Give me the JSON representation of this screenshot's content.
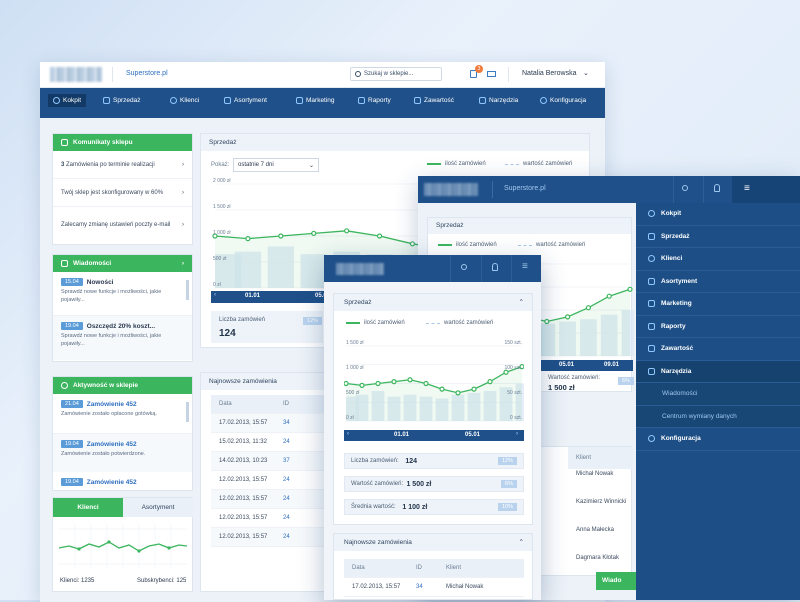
{
  "desktop": {
    "store_link": "Superstore.pl",
    "search_placeholder": "Szukaj w sklepie...",
    "cart_count": "3",
    "user_name": "Natalia Berowska",
    "nav": [
      "Kokpit",
      "Sprzedaż",
      "Klienci",
      "Asortyment",
      "Marketing",
      "Raporty",
      "Zawartość",
      "Narzędzia",
      "Konfiguracja"
    ],
    "komunikaty": {
      "title": "Komunikaty sklepu",
      "items": [
        {
          "num": "3",
          "text": "Zamówienia po terminie realizacji"
        },
        {
          "num": "",
          "text": "Twój sklep jest skonfigurowany w 60%"
        },
        {
          "num": "",
          "text": "Zalecamy zmianę ustawień poczty e-mail"
        }
      ]
    },
    "wiadomosci": {
      "title": "Wiadomości",
      "items": [
        {
          "date": "15.04",
          "title": "Nowości",
          "text": "Sprawdź nowe funkcje i możliwości, jakie pojawiły..."
        },
        {
          "date": "19.04",
          "title": "Oszczędź 20% koszt...",
          "text": "Sprawdź nowe funkcje i możliwości, jakie pojawiły..."
        }
      ]
    },
    "aktywnosc": {
      "title": "Aktywność w sklepie",
      "items": [
        {
          "date": "21.04",
          "title": "Zamówienie 452",
          "text": "Zamówienie zostało opłacone gotówką."
        },
        {
          "date": "19.04",
          "title": "Zamówienie 452",
          "text": "Zamówienie zostało potwierdzone."
        },
        {
          "date": "19.04",
          "title": "Zamówienie 452",
          "text": ""
        }
      ]
    },
    "tabs": {
      "klienci": "Klienci",
      "asortyment": "Asortyment",
      "klienci_count": "Klienci: 1235",
      "subskrybenci": "Subskrybenci: 125"
    },
    "sprzedaz": {
      "title": "Sprzedaż",
      "pokaz_label": "Pokaż:",
      "pokaz_value": "ostatnie 7 dni",
      "legend1": "ilość zamówień",
      "legend2": "wartość zamówień",
      "yticks": [
        "2 000 zł",
        "1 500 zł",
        "1 000 zł",
        "500 zł",
        "0 zł"
      ],
      "date1": "01.01",
      "date2": "05.01",
      "stat_label": "Liczba zamówień",
      "stat_value": "124",
      "stat_pct": "12%"
    },
    "najnowsze": {
      "title": "Najnowsze zamówienia",
      "headers": [
        "Data",
        "ID"
      ],
      "rows": [
        [
          "17.02.2013, 15:57",
          "34"
        ],
        [
          "15.02.2013, 11:32",
          "24"
        ],
        [
          "14.02.2013, 10:23",
          "37"
        ],
        [
          "12.02.2013, 15:57",
          "24"
        ],
        [
          "12.02.2013, 15:57",
          "24"
        ],
        [
          "12.02.2013, 15:57",
          "24"
        ],
        [
          "12.02.2013, 15:57",
          "24"
        ]
      ]
    }
  },
  "tablet": {
    "store_link": "Superstore.pl",
    "sprzedaz_title": "Sprzedaż",
    "legend1": "ilość zamówień",
    "legend2": "wartość zamówień",
    "date1": "05.01",
    "date2": "09.01",
    "wartosc_label": "Wartość zamówień:",
    "wartosc_value": "1 500 zł",
    "wartosc_pct": "6%",
    "client_header": "Klient",
    "clients": [
      "Michał Nowak",
      "Kazimierz Winnicki",
      "Anna Małecka",
      "Dagmara Kłotak"
    ],
    "wiado": "Wiado",
    "menu": [
      "Kokpit",
      "Sprzedaż",
      "Klienci",
      "Asortyment",
      "Marketing",
      "Raporty",
      "Zawartość",
      "Narzędzia"
    ],
    "submenu": [
      "Wiadomości",
      "Centrum wymiany danych"
    ],
    "menu_last": "Konfiguracja"
  },
  "mobile": {
    "sprzedaz_title": "Sprzedaż",
    "legend1": "ilość zamówień",
    "legend2": "wartość zamówień",
    "yleft": [
      "1 500 zł",
      "1 000 zł",
      "500 zł",
      "0 zł"
    ],
    "yright": [
      "150 szt.",
      "100 szt.",
      "50 szt.",
      "0 szt."
    ],
    "date1": "01.01",
    "date2": "05.01",
    "stats": [
      {
        "label": "Liczba zamówień:",
        "value": "124",
        "pct": "12%"
      },
      {
        "label": "Wartość zamówień:",
        "value": "1 500 zł",
        "pct": "6%"
      },
      {
        "label": "Średnia wartość:",
        "value": "1 100 zł",
        "pct": "10%"
      }
    ],
    "najnowsze_title": "Najnowsze zamówienia",
    "headers": [
      "Data",
      "ID",
      "Klient"
    ],
    "row": [
      "17.02.2013, 15:57",
      "34",
      "Michał Nowak"
    ]
  },
  "chart_data": {
    "type": "line",
    "series": [
      {
        "name": "ilość zamówień",
        "values": [
          1000,
          950,
          1000,
          1050,
          1100,
          1000,
          850,
          750,
          850,
          1050,
          1300,
          1450
        ]
      },
      {
        "name": "wartość zamówień",
        "values": [
          650,
          700,
          800,
          650,
          700,
          650,
          600,
          700,
          750,
          800,
          900,
          1000
        ]
      }
    ],
    "ylim": [
      0,
      2000
    ],
    "colors": {
      "line": "#3cb65e",
      "bars": "#dbe8f5"
    }
  }
}
